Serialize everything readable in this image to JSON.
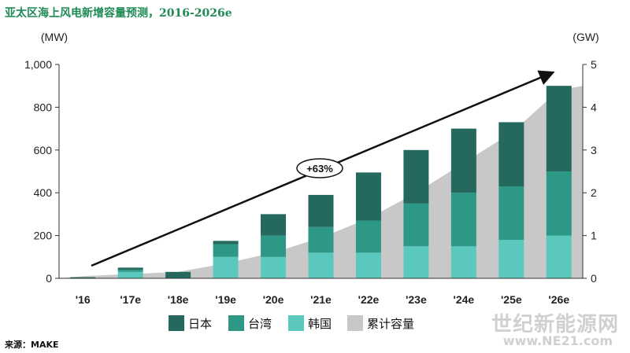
{
  "title": "亚太区海上风电新增容量预测，2016-2026e",
  "source": "来源：MAKE",
  "watermark": {
    "cn": "世纪新能源网",
    "url": "www.NE21.com"
  },
  "colors": {
    "japan": "#24685e",
    "taiwan": "#2e9887",
    "korea": "#5bc8bd",
    "cumulative": "#c8c8c8"
  },
  "chart_data": {
    "type": "bar",
    "stacked": true,
    "categories": [
      "'16",
      "'17e",
      "'18e",
      "'19e",
      "'20e",
      "'21e",
      "'22e",
      "'23e",
      "'24e",
      "'25e",
      "'26e"
    ],
    "series": [
      {
        "name": "韩国",
        "axis": "left",
        "values": [
          0,
          30,
          0,
          100,
          100,
          120,
          120,
          150,
          150,
          180,
          200
        ]
      },
      {
        "name": "台湾",
        "axis": "left",
        "values": [
          0,
          10,
          0,
          60,
          100,
          120,
          150,
          200,
          250,
          250,
          300
        ]
      },
      {
        "name": "日本",
        "axis": "left",
        "values": [
          5,
          10,
          30,
          15,
          100,
          150,
          225,
          250,
          300,
          300,
          400
        ]
      },
      {
        "name": "累计容量",
        "type": "area",
        "axis": "right",
        "values": [
          0.05,
          0.1,
          0.15,
          0.35,
          0.6,
          0.95,
          1.4,
          2.0,
          2.7,
          3.4,
          4.4
        ]
      }
    ],
    "left_axis": {
      "label": "(MW)",
      "ticks": [
        "0",
        "200",
        "400",
        "600",
        "800",
        "1,000"
      ],
      "ylim": [
        0,
        1000
      ]
    },
    "right_axis": {
      "label": "(GW)",
      "ticks": [
        "0",
        "1",
        "2",
        "3",
        "4",
        "5"
      ],
      "ylim": [
        0,
        5
      ]
    },
    "annotation": "+63%",
    "legend": {
      "placement": "bottom",
      "entries": [
        "日本",
        "台湾",
        "韩国",
        "累计容量"
      ]
    },
    "grid": false
  }
}
